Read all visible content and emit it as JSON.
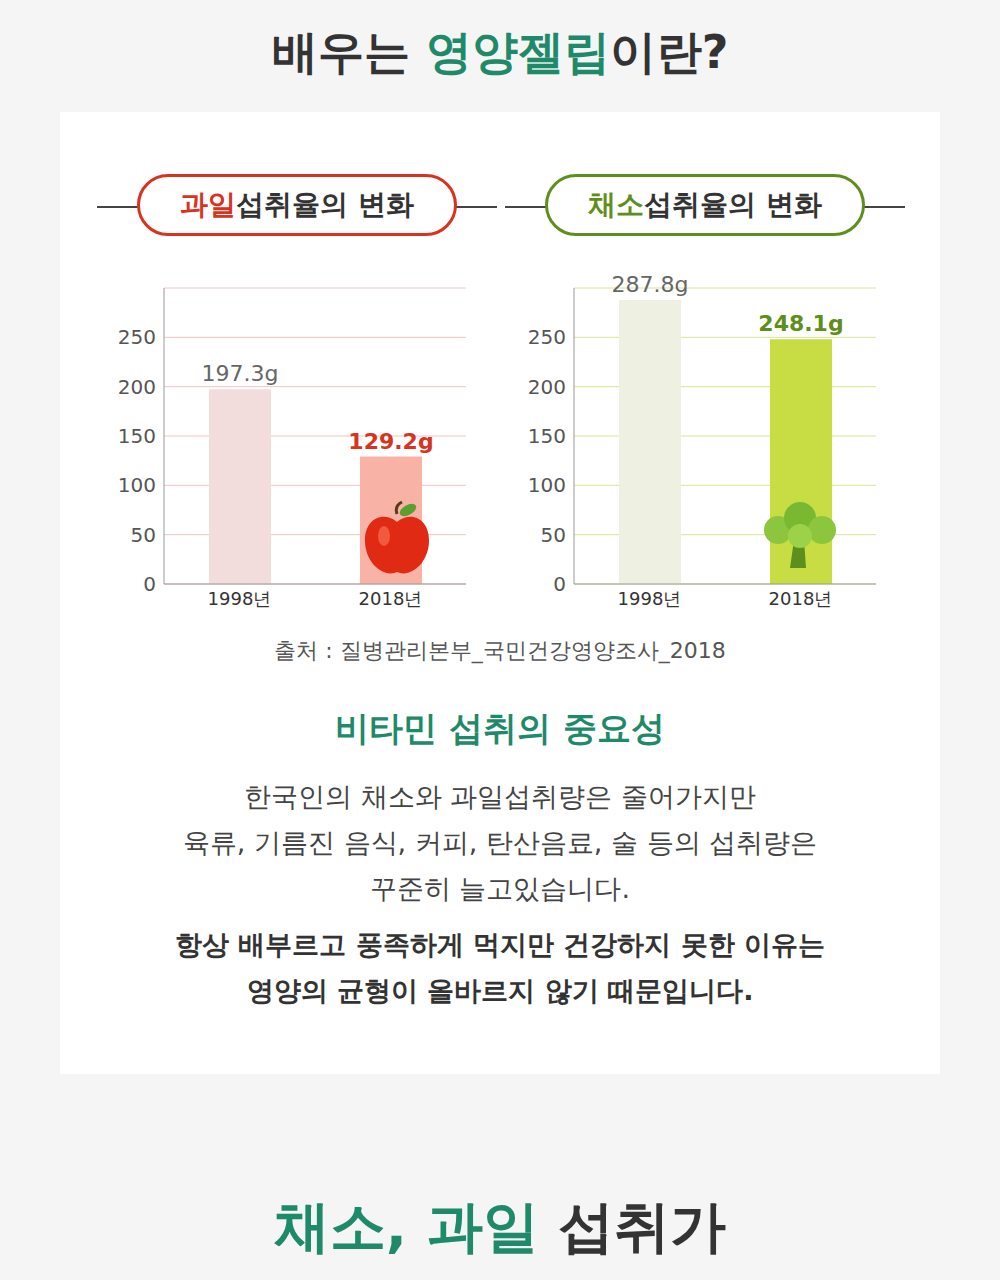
{
  "header": {
    "title_parts": [
      "배우는 ",
      "영양젤립",
      "이란?"
    ]
  },
  "chart_data": [
    {
      "type": "bar",
      "title": "과일 섭취율의 변화",
      "categories": [
        "1998년",
        "2018년"
      ],
      "values": [
        197.3,
        129.2
      ],
      "value_labels": [
        "197.3g",
        "129.2g"
      ],
      "colors": [
        "#f2dcdc",
        "#f8b2a6"
      ],
      "ylim": [
        0,
        300
      ],
      "yticks": [
        0,
        50,
        100,
        150,
        200,
        250
      ],
      "grid": true,
      "data_labels": true
    },
    {
      "type": "bar",
      "title": "채소 섭취율의 변화",
      "categories": [
        "1998년",
        "2018년"
      ],
      "values": [
        287.8,
        248.1
      ],
      "value_labels": [
        "287.8g",
        "248.1g"
      ],
      "colors": [
        "#eef0e2",
        "#c8dc44"
      ],
      "ylim": [
        0,
        300
      ],
      "yticks": [
        0,
        50,
        100,
        150,
        200,
        250
      ],
      "grid": true,
      "data_labels": true
    }
  ],
  "source": "출처 : 질병관리본부_국민건강영양조사_2018",
  "section": {
    "heading": "비타민 섭취의 중요성",
    "paragraph": [
      "한국인의 채소와 과일섭취량은 줄어가지만",
      "육류, 기름진 음식, 커피, 탄산음료, 술 등의 섭취량은",
      "꾸준히 늘고있습니다."
    ],
    "emphasis": [
      "항상 배부르고 풍족하게 먹지만 건강하지 못한 이유는",
      "영양의 균형이 올바르지 않기 때문입니다."
    ]
  },
  "footer": {
    "title_parts": [
      "채소, 과일",
      " 섭취가"
    ]
  }
}
